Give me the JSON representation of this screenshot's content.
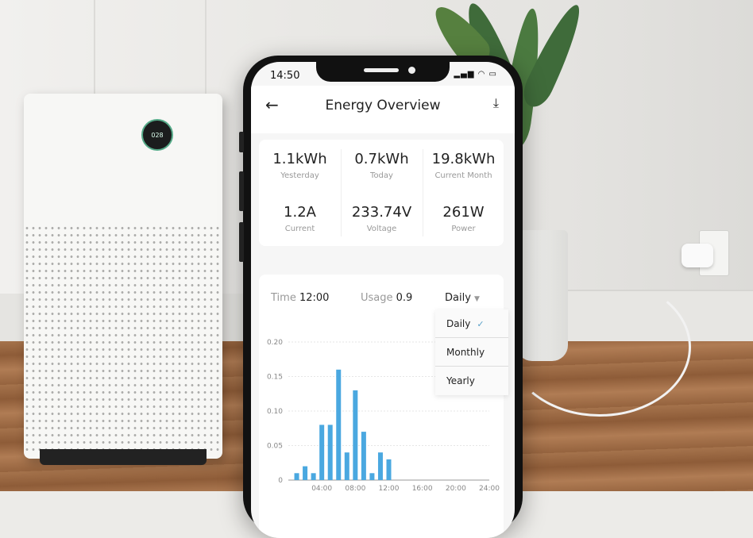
{
  "status_bar": {
    "time": "14:50",
    "icons": "signal wifi battery"
  },
  "header": {
    "title": "Energy Overview",
    "back_icon": "arrow-left-icon",
    "download_icon": "download-icon"
  },
  "stats": [
    {
      "value": "1.1kWh",
      "label": "Yesterday"
    },
    {
      "value": "0.7kWh",
      "label": "Today"
    },
    {
      "value": "19.8kWh",
      "label": "Current Month"
    },
    {
      "value": "1.2A",
      "label": "Current"
    },
    {
      "value": "233.74V",
      "label": "Voltage"
    },
    {
      "value": "261W",
      "label": "Power"
    }
  ],
  "controls": {
    "time_label": "Time",
    "time_value": "12:00",
    "usage_label": "Usage",
    "usage_value": "0.9",
    "period": "Daily"
  },
  "period_menu": {
    "options": [
      "Daily",
      "Monthly",
      "Yearly"
    ],
    "selected": "Daily"
  },
  "accent": "#4aa8e0",
  "chart_data": {
    "type": "bar",
    "x": [
      1,
      2,
      3,
      4,
      5,
      6,
      7,
      8,
      9,
      10,
      11,
      12
    ],
    "values": [
      0.01,
      0.02,
      0.01,
      0.08,
      0.08,
      0.16,
      0.04,
      0.13,
      0.07,
      0.01,
      0.04,
      0.03
    ],
    "xlim": [
      0,
      24
    ],
    "ylim": [
      0,
      0.2
    ],
    "x_ticks": [
      "04:00",
      "08:00",
      "12:00",
      "16:00",
      "20:00",
      "24:00"
    ],
    "y_ticks": [
      "0",
      "0.05",
      "0.10",
      "0.15",
      "0.20"
    ],
    "grid": true
  }
}
